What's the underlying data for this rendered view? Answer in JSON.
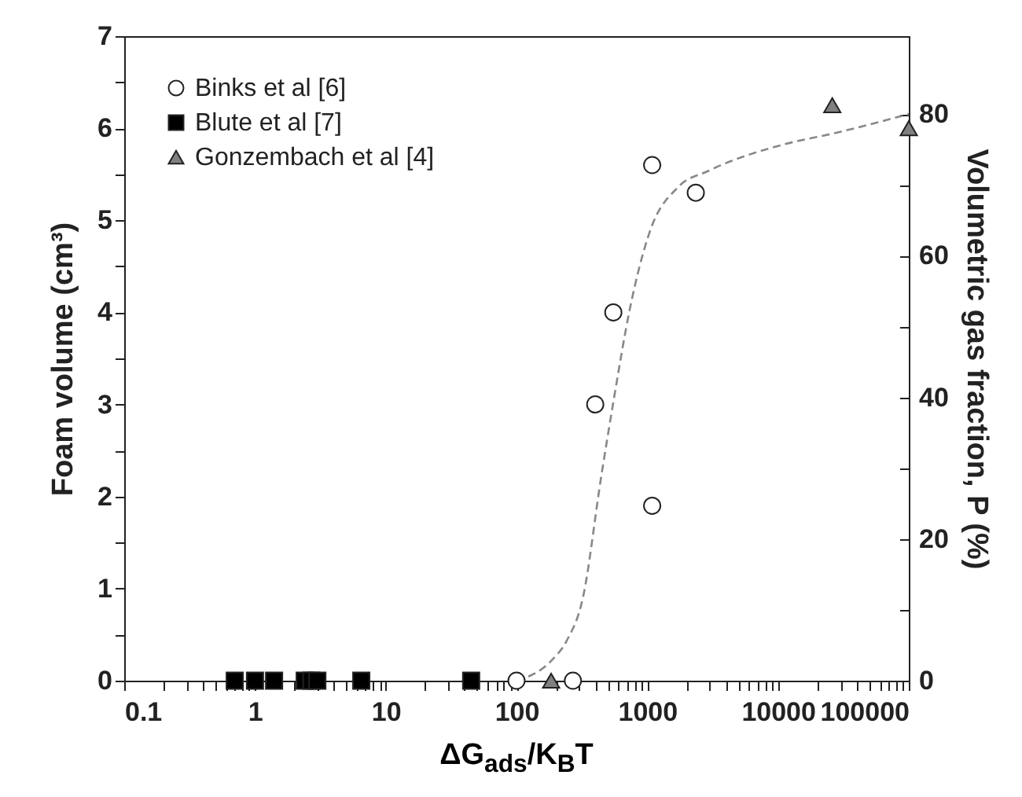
{
  "chart_data": {
    "type": "scatter",
    "xlabel": "ΔG$_{ads}$/K$_{B}$T",
    "ylabel": "Foam volume (cm³)",
    "y2label": "Volumetric gas fraction, P (%)",
    "log": "x",
    "xlim": [
      0.1,
      100000
    ],
    "xticks": [
      0.1,
      {
        "value": 0.2,
        "label": null
      },
      {
        "value": 0.3,
        "label": null
      },
      {
        "value": 0.4,
        "label": null
      },
      {
        "value": 0.5,
        "label": null
      },
      {
        "value": 0.6,
        "label": null
      },
      {
        "value": 0.7,
        "label": null
      },
      {
        "value": 0.8,
        "label": null
      },
      {
        "value": 0.9,
        "label": null
      },
      1,
      {
        "value": 2,
        "label": null
      },
      {
        "value": 3,
        "label": null
      },
      {
        "value": 4,
        "label": null
      },
      {
        "value": 5,
        "label": null
      },
      {
        "value": 6,
        "label": null
      },
      {
        "value": 7,
        "label": null
      },
      {
        "value": 8,
        "label": null
      },
      {
        "value": 9,
        "label": null
      },
      10,
      {
        "value": 20,
        "label": null
      },
      {
        "value": 30,
        "label": null
      },
      {
        "value": 40,
        "label": null
      },
      {
        "value": 50,
        "label": null
      },
      {
        "value": 60,
        "label": null
      },
      {
        "value": 70,
        "label": null
      },
      {
        "value": 80,
        "label": null
      },
      {
        "value": 90,
        "label": null
      },
      100,
      {
        "value": 200,
        "label": null
      },
      {
        "value": 300,
        "label": null
      },
      {
        "value": 400,
        "label": null
      },
      {
        "value": 500,
        "label": null
      },
      {
        "value": 600,
        "label": null
      },
      {
        "value": 700,
        "label": null
      },
      {
        "value": 800,
        "label": null
      },
      {
        "value": 900,
        "label": null
      },
      1000,
      {
        "value": 2000,
        "label": null
      },
      {
        "value": 3000,
        "label": null
      },
      {
        "value": 4000,
        "label": null
      },
      {
        "value": 5000,
        "label": null
      },
      {
        "value": 6000,
        "label": null
      },
      {
        "value": 7000,
        "label": null
      },
      {
        "value": 8000,
        "label": null
      },
      {
        "value": 9000,
        "label": null
      },
      10000,
      {
        "value": 20000,
        "label": null
      },
      {
        "value": 30000,
        "label": null
      },
      {
        "value": 40000,
        "label": null
      },
      {
        "value": 50000,
        "label": null
      },
      {
        "value": 60000,
        "label": null
      },
      {
        "value": 70000,
        "label": null
      },
      {
        "value": 80000,
        "label": null
      },
      {
        "value": 90000,
        "label": null
      },
      100000
    ],
    "ylim": [
      0,
      7
    ],
    "yticks": [
      0,
      {
        "value": 0.5,
        "label": null
      },
      1,
      {
        "value": 1.5,
        "label": null
      },
      2,
      {
        "value": 2.5,
        "label": null
      },
      3,
      {
        "value": 3.5,
        "label": null
      },
      4,
      {
        "value": 4.5,
        "label": null
      },
      5,
      {
        "value": 5.5,
        "label": null
      },
      6,
      {
        "value": 6.5,
        "label": null
      },
      7
    ],
    "y2lim": [
      0,
      91
    ],
    "y2ticks": [
      0,
      {
        "value": 10,
        "label": null
      },
      20,
      {
        "value": 30,
        "label": null
      },
      40,
      {
        "value": 50,
        "label": null
      },
      60,
      {
        "value": 70,
        "label": null
      },
      80
    ],
    "legend": "top left",
    "grid": false,
    "series": [
      {
        "name": "Binks et al [6]",
        "color": "#ffffff",
        "marker": "circle",
        "x": [
          100,
          270,
          400,
          550,
          1090,
          1090,
          2350
        ],
        "values": [
          0,
          0,
          3.0,
          4.0,
          5.6,
          1.9,
          5.3
        ]
      },
      {
        "name": "Blute et al [7]",
        "color": "#000000",
        "marker": "square",
        "x": [
          0.7,
          1.0,
          1.4,
          2.4,
          2.7,
          3.0,
          6.5,
          45
        ],
        "values": [
          0,
          0,
          0,
          0,
          0,
          0,
          0,
          0
        ]
      },
      {
        "name": "Gonzembach et al [4]",
        "color": "#808080",
        "marker": "triangle",
        "x": [
          184,
          26000,
          100000
        ],
        "values": [
          0,
          6.25,
          6.0
        ]
      },
      {
        "type": "line",
        "axis": "y2",
        "color": "#888888",
        "line_style": "dashed",
        "marker": "none",
        "x": [
          100,
          184,
          243,
          321,
          446,
          558,
          736,
          1050,
          1700,
          2950,
          11000,
          27000,
          100000
        ],
        "values": [
          0,
          2.8,
          5.7,
          11.6,
          29,
          40,
          52.5,
          63.5,
          69.6,
          72,
          75.7,
          77.3,
          80
        ]
      }
    ]
  }
}
